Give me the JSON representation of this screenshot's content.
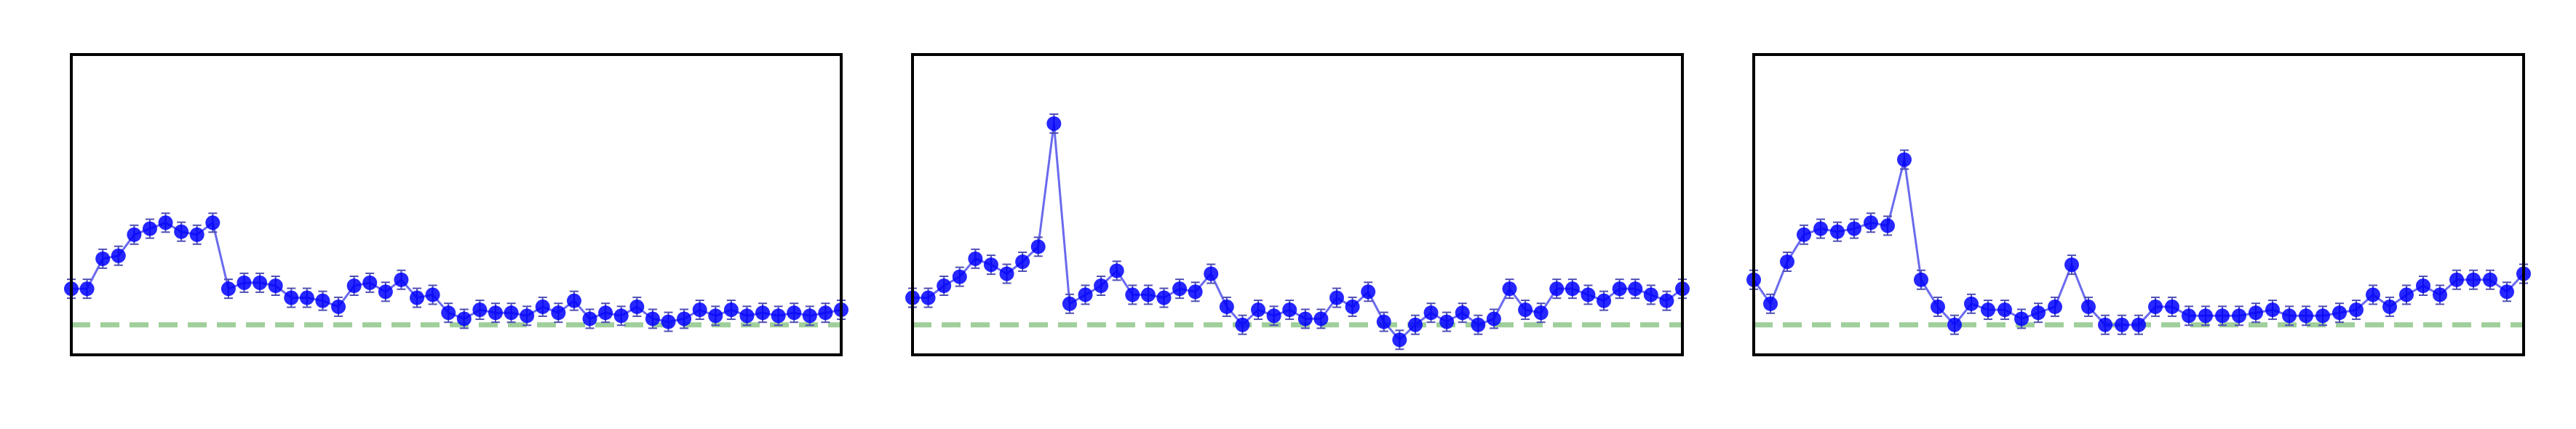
{
  "figure": {
    "background": "#ffffff",
    "panel_count": 3
  },
  "style": {
    "series_color": "#0000ff",
    "line_color": "#6a6aee",
    "reference_color": "#9fcf9a",
    "frame_color": "#000000",
    "marker": "filled-circle-with-error-bar",
    "reference_style": "dashed"
  },
  "chart_data": [
    {
      "type": "line",
      "title": "",
      "xlabel": "",
      "ylabel": "",
      "x_ticks": [],
      "y_ticks": [],
      "grid": false,
      "legend": "none",
      "xlim": [
        0,
        49
      ],
      "ylim": [
        0,
        1
      ],
      "reference_line": 0.1,
      "series": [
        {
          "values": [
            0.22,
            0.22,
            0.32,
            0.33,
            0.4,
            0.42,
            0.44,
            0.41,
            0.4,
            0.44,
            0.22,
            0.24,
            0.24,
            0.23,
            0.19,
            0.19,
            0.18,
            0.16,
            0.23,
            0.24,
            0.21,
            0.25,
            0.19,
            0.2,
            0.14,
            0.12,
            0.15,
            0.14,
            0.14,
            0.13,
            0.16,
            0.14,
            0.18,
            0.12,
            0.14,
            0.13,
            0.16,
            0.12,
            0.11,
            0.12,
            0.15,
            0.13,
            0.15,
            0.13,
            0.14,
            0.13,
            0.14,
            0.13,
            0.14,
            0.15
          ]
        }
      ]
    },
    {
      "type": "line",
      "title": "",
      "xlabel": "",
      "ylabel": "",
      "x_ticks": [],
      "y_ticks": [],
      "grid": false,
      "legend": "none",
      "xlim": [
        0,
        49
      ],
      "ylim": [
        0,
        1
      ],
      "reference_line": 0.1,
      "series": [
        {
          "values": [
            0.19,
            0.19,
            0.23,
            0.26,
            0.32,
            0.3,
            0.27,
            0.31,
            0.36,
            0.77,
            0.17,
            0.2,
            0.23,
            0.28,
            0.2,
            0.2,
            0.19,
            0.22,
            0.21,
            0.27,
            0.16,
            0.1,
            0.15,
            0.13,
            0.15,
            0.12,
            0.12,
            0.19,
            0.16,
            0.21,
            0.11,
            0.05,
            0.1,
            0.14,
            0.11,
            0.14,
            0.1,
            0.12,
            0.22,
            0.15,
            0.14,
            0.22,
            0.22,
            0.2,
            0.18,
            0.22,
            0.22,
            0.2,
            0.18,
            0.22
          ]
        }
      ]
    },
    {
      "type": "line",
      "title": "",
      "xlabel": "",
      "ylabel": "",
      "x_ticks": [],
      "y_ticks": [],
      "grid": false,
      "legend": "none",
      "xlim": [
        0,
        46
      ],
      "ylim": [
        0,
        1
      ],
      "reference_line": 0.1,
      "series": [
        {
          "values": [
            0.25,
            0.17,
            0.31,
            0.4,
            0.42,
            0.41,
            0.42,
            0.44,
            0.43,
            0.65,
            0.25,
            0.16,
            0.1,
            0.17,
            0.15,
            0.15,
            0.12,
            0.14,
            0.16,
            0.3,
            0.16,
            0.1,
            0.1,
            0.1,
            0.16,
            0.16,
            0.13,
            0.13,
            0.13,
            0.13,
            0.14,
            0.15,
            0.13,
            0.13,
            0.13,
            0.14,
            0.15,
            0.2,
            0.16,
            0.2,
            0.23,
            0.2,
            0.25,
            0.25,
            0.25,
            0.21,
            0.27
          ]
        }
      ]
    }
  ]
}
